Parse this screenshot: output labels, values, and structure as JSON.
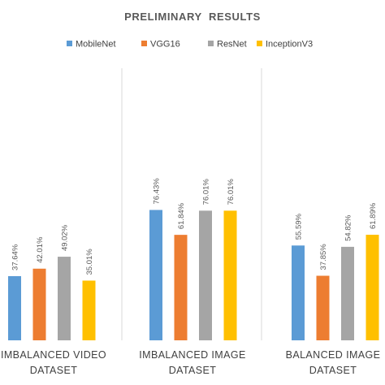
{
  "chart_data": {
    "type": "bar",
    "title": "PRELIMINARY  RESULTS",
    "xlabel": "",
    "ylabel": "",
    "ylim": [
      0,
      100
    ],
    "grid": false,
    "legend_position": "top",
    "categories": [
      [
        "IMBALANCED",
        "VIDEO",
        "DATASET"
      ],
      [
        "IMBALANCED",
        "IMAGE",
        "DATASET"
      ],
      [
        "BALANCED",
        "IMAGE",
        "DATASET"
      ]
    ],
    "series": [
      {
        "name": "MobileNet",
        "color": "#5B9BD5",
        "values": [
          37.64,
          76.43,
          55.59
        ],
        "labels": [
          "37.64%",
          "76.43%",
          "55.59%"
        ]
      },
      {
        "name": "VGG16",
        "color": "#ED7D31",
        "values": [
          42.01,
          61.84,
          37.85
        ],
        "labels": [
          "42.01%",
          "61.84%",
          "37.85%"
        ]
      },
      {
        "name": "ResNet",
        "color": "#A5A5A5",
        "values": [
          49.02,
          76.01,
          54.82
        ],
        "labels": [
          "49.02%",
          "76.01%",
          "54.82%"
        ]
      },
      {
        "name": "InceptionV3",
        "color": "#FFC000",
        "values": [
          35.01,
          76.01,
          61.89
        ],
        "labels": [
          "35.01%",
          "76.01%",
          "61.89%"
        ]
      }
    ]
  }
}
